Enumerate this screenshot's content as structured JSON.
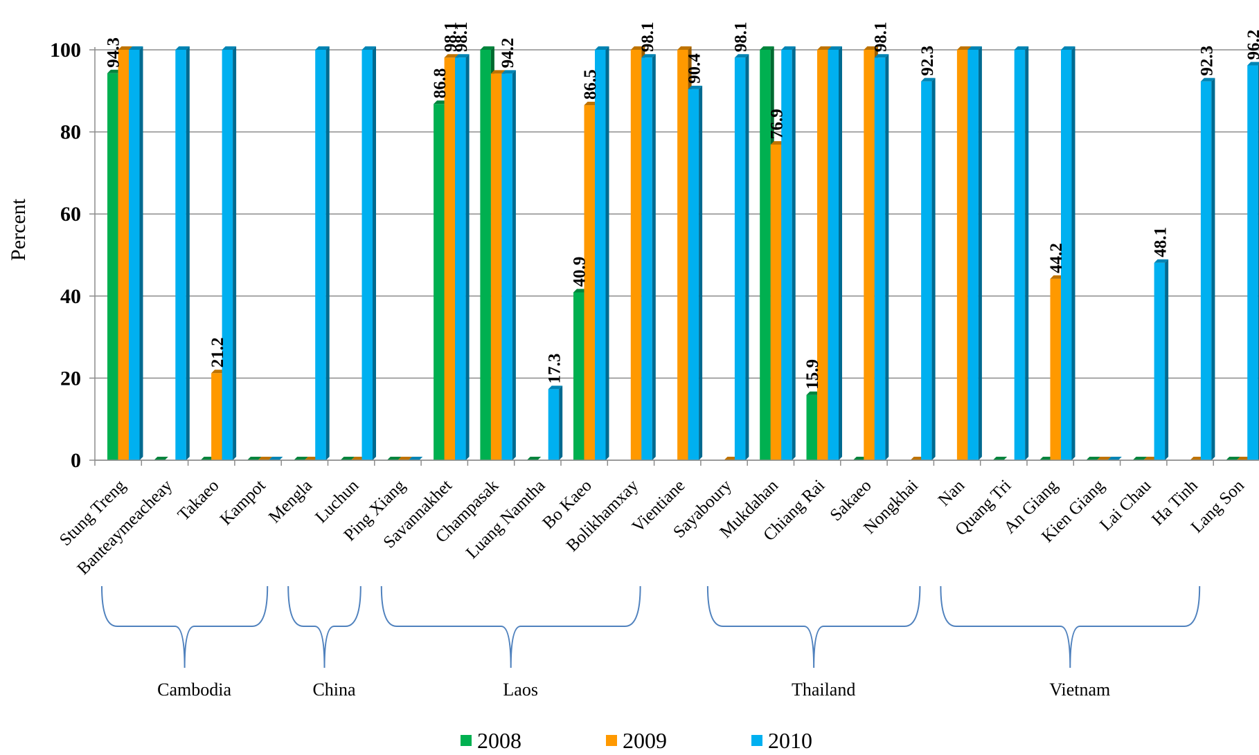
{
  "chart_data": {
    "type": "bar",
    "title": "",
    "xlabel": "",
    "ylabel": "Percent",
    "ylim": [
      0,
      100
    ],
    "yticks": [
      0,
      20,
      40,
      60,
      80,
      100
    ],
    "grid": true,
    "legend_position": "bottom",
    "categories": [
      "Stung Treng",
      "Banteaymeacheay",
      "Takaeo",
      "Kampot",
      "Mengla",
      "Luchun",
      "Ping Xiang",
      "Savannakhet",
      "Champasak",
      "Luang Namtha",
      "Bo Kaeo",
      "Bolikhamxay",
      "Vientiane",
      "Sayaboury",
      "Mukdahan",
      "Chiang Rai",
      "Sakaeo",
      "Nongkhai",
      "Nan",
      "Quang Tri",
      "An Giang",
      "Kien Giang",
      "Lai Chau",
      "Ha Tinh",
      "Lang Son"
    ],
    "groups": [
      {
        "name": "Cambodia",
        "start": 0,
        "end": 3
      },
      {
        "name": "China",
        "start": 4,
        "end": 5
      },
      {
        "name": "Laos",
        "start": 6,
        "end": 11
      },
      {
        "name": "Thailand",
        "start": 13,
        "end": 17
      },
      {
        "name": "Vietnam",
        "start": 18,
        "end": 23
      }
    ],
    "series": [
      {
        "name": "2008",
        "color": "#00b050",
        "values": [
          94.3,
          0,
          0,
          0,
          0,
          0,
          0,
          86.8,
          100,
          0,
          40.9,
          null,
          null,
          null,
          100,
          15.9,
          0,
          null,
          null,
          0,
          0,
          0,
          0,
          null,
          0
        ],
        "labels": [
          "94.3",
          null,
          null,
          null,
          null,
          null,
          null,
          "86.8",
          null,
          null,
          "40.9",
          null,
          null,
          null,
          null,
          "15.9",
          null,
          null,
          null,
          null,
          null,
          null,
          null,
          null,
          null
        ]
      },
      {
        "name": "2009",
        "color": "#ff9900",
        "values": [
          100,
          null,
          21.2,
          0,
          0,
          0,
          0,
          98.1,
          94.2,
          null,
          86.5,
          100,
          100,
          0,
          76.9,
          100,
          100,
          0,
          100,
          null,
          44.2,
          0,
          0,
          0,
          0
        ],
        "labels": [
          null,
          null,
          "21.2",
          null,
          null,
          null,
          null,
          "98.1",
          null,
          null,
          "86.5",
          null,
          null,
          null,
          "76.9",
          null,
          null,
          null,
          null,
          null,
          "44.2",
          null,
          null,
          null,
          null
        ]
      },
      {
        "name": "2010",
        "color": "#00b0f0",
        "values": [
          100,
          100,
          100,
          0,
          100,
          100,
          0,
          98.1,
          94.2,
          17.3,
          100,
          98.1,
          90.4,
          98.1,
          100,
          100,
          98.1,
          92.3,
          100,
          100,
          100,
          0,
          48.1,
          92.3,
          96.2
        ],
        "labels": [
          null,
          null,
          null,
          null,
          null,
          null,
          null,
          "98.1",
          "94.2",
          "17.3",
          null,
          "98.1",
          "90.4",
          "98.1",
          null,
          null,
          "98.1",
          "92.3",
          null,
          null,
          null,
          null,
          "48.1",
          "92.3",
          "96.2"
        ]
      }
    ]
  }
}
